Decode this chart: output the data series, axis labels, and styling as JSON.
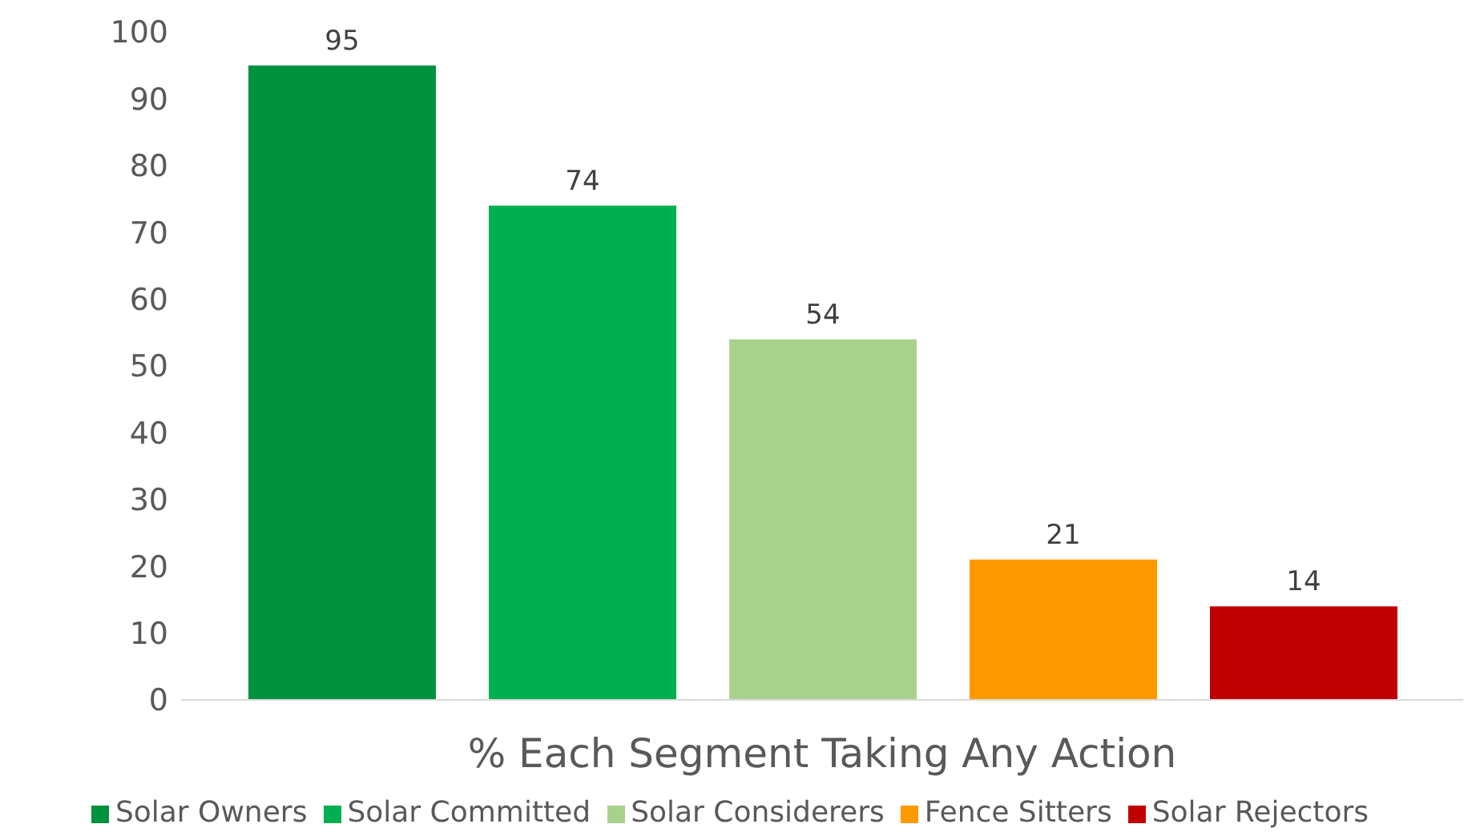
{
  "chart_data": {
    "type": "bar",
    "categories": [
      "% Each Segment Taking Any Action"
    ],
    "series": [
      {
        "name": "Solar Owners",
        "color": "#00913f",
        "values": [
          95
        ]
      },
      {
        "name": "Solar Committed",
        "color": "#00b050",
        "values": [
          74
        ]
      },
      {
        "name": "Solar Considerers",
        "color": "#a9d18e",
        "values": [
          54
        ]
      },
      {
        "name": "Fence Sitters",
        "color": "#ff9900",
        "values": [
          21
        ]
      },
      {
        "name": "Solar Rejectors",
        "color": "#c00000",
        "values": [
          14
        ]
      }
    ],
    "ylim": [
      0,
      100
    ],
    "yticks": [
      0,
      10,
      20,
      30,
      40,
      50,
      60,
      70,
      80,
      90,
      100
    ],
    "grid": false,
    "legend": "bottom",
    "data_labels": true
  }
}
